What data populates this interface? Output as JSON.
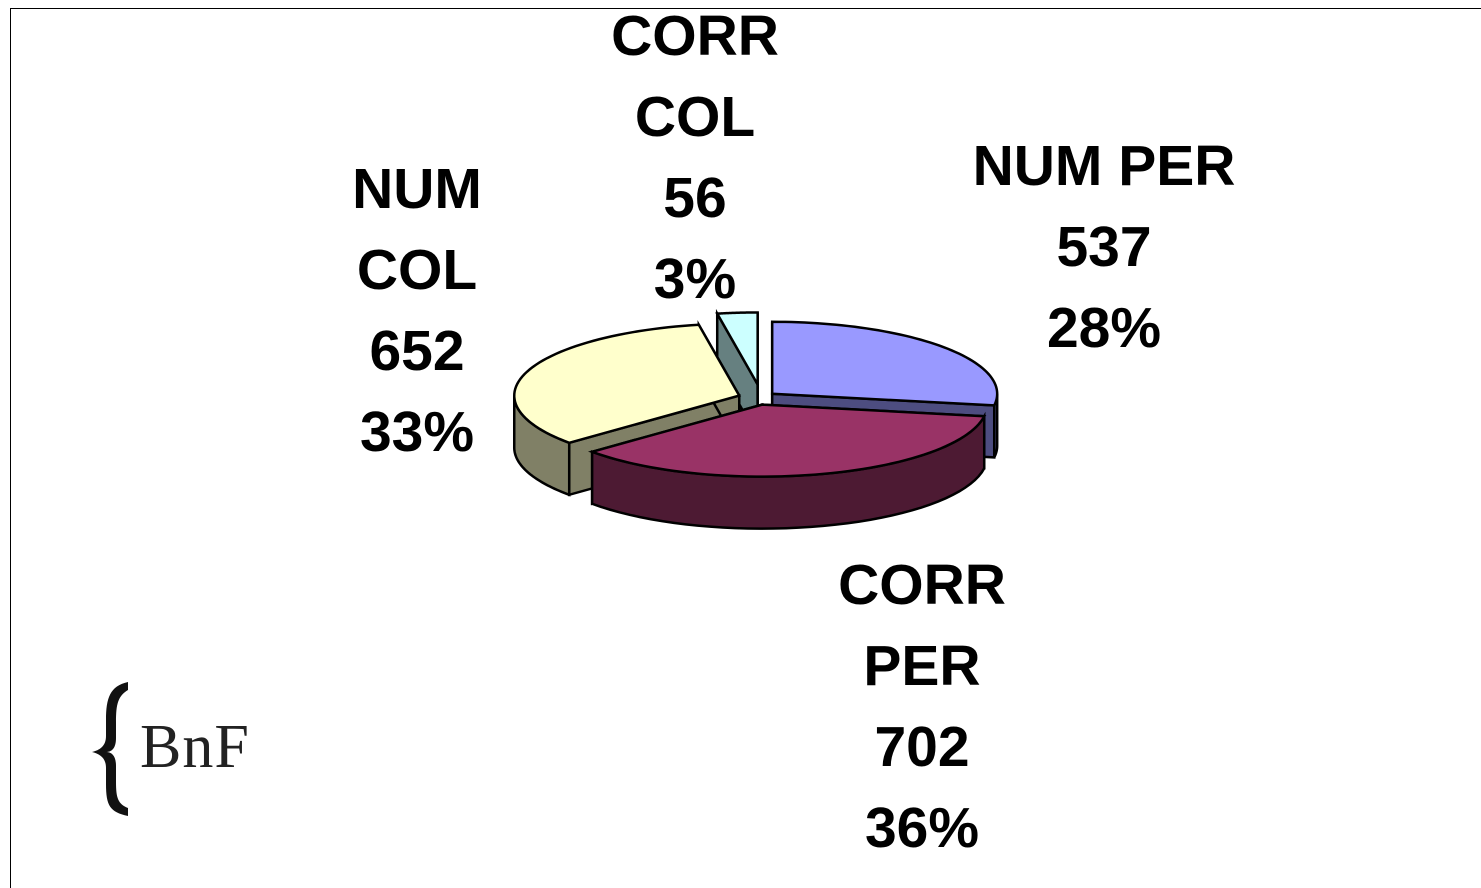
{
  "chart_data": {
    "type": "pie",
    "three_d": true,
    "exploded": true,
    "slices": [
      {
        "name": "NUM PER",
        "value": 537,
        "percent": "28%",
        "color_top": "#9999ff",
        "color_side": "#4d4d80"
      },
      {
        "name": "CORR PER",
        "value": 702,
        "percent": "36%",
        "color_top": "#993366",
        "color_side": "#4d1a33"
      },
      {
        "name": "NUM COL",
        "value": 652,
        "percent": "33%",
        "color_top": "#ffffcc",
        "color_side": "#808066"
      },
      {
        "name": "CORR COL",
        "value": 56,
        "percent": "3%",
        "color_top": "#ccffff",
        "color_side": "#668080"
      }
    ],
    "labels": [
      {
        "lines": [
          "NUM PER",
          "537",
          "28%"
        ]
      },
      {
        "lines": [
          "CORR",
          "PER",
          "702",
          "36%"
        ]
      },
      {
        "lines": [
          "NUM",
          "COL",
          "652",
          "33%"
        ]
      },
      {
        "lines": [
          "CORR",
          "COL",
          "56",
          "3%"
        ]
      }
    ]
  },
  "logo": {
    "text": "BnF"
  }
}
